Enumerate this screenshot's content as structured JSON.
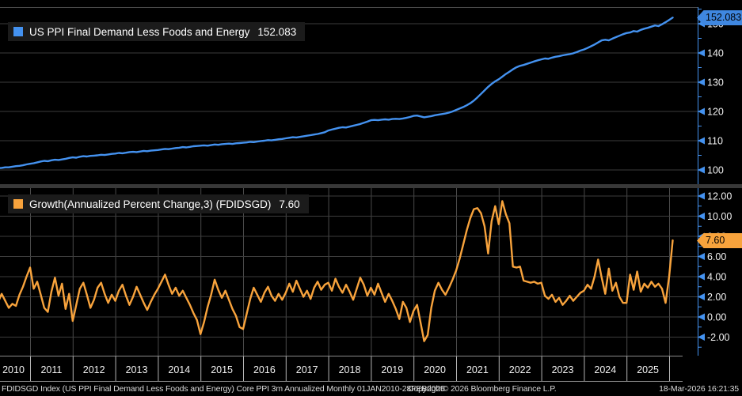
{
  "legends": {
    "top": {
      "label": "US PPI Final Demand Less Foods and Energy",
      "value": "152.083"
    },
    "bottom": {
      "label": "Growth(Annualized Percent Change,3) (FDIDSGD)",
      "value": "7.60"
    }
  },
  "badges": {
    "top": {
      "text": "152.083",
      "v": 152.083
    },
    "bottom": {
      "text": "7.60",
      "v": 7.6
    }
  },
  "footer": {
    "left": "FDIDSGD Index (US PPI Final Demand Less Foods and Energy) Core PPI 3m Annualized Monthly 01JAN2010-28FEB2026",
    "center": "Copyright© 2026 Bloomberg Finance L.P.",
    "right": "18-Mar-2026 16:21:35"
  },
  "colors": {
    "background": "#000000",
    "top_line": "#4492f0",
    "bottom_line": "#f8a33c",
    "axis": "#4492f0",
    "grid_h": "#3d3d3d",
    "grid_v": "#4a4a4a",
    "separator": "#383838",
    "top_border": "#4a4a4a",
    "label_row_line": "#8a8a8a",
    "label_row_divider": "#b5b5b5",
    "tick_text": "#f2f2f2",
    "top_badge_bg": "#3f87e0",
    "bottom_badge_bg": "#f8a33c",
    "badge_text": "#000000",
    "legend_bg": "#1b1b1b",
    "footer_text": "#d8d8d8"
  },
  "x_axis": {
    "year_labels": [
      "2010",
      "2011",
      "2012",
      "2013",
      "2014",
      "2015",
      "2016",
      "2017",
      "2018",
      "2019",
      "2020",
      "2021",
      "2022",
      "2023",
      "2024",
      "2025"
    ]
  },
  "chart_data": [
    {
      "type": "line",
      "name": "US PPI Final Demand Less Foods and Energy",
      "panel": "top",
      "freq": "monthly",
      "start": "2010-01",
      "end": "2026-02",
      "last_value": 152.083,
      "ylim": [
        97,
        154
      ],
      "yticks_labeled": [
        {
          "v": 150,
          "t": "150"
        },
        {
          "v": 140,
          "t": "140"
        },
        {
          "v": 130,
          "t": "130"
        },
        {
          "v": 120,
          "t": "120"
        },
        {
          "v": 110,
          "t": "110"
        },
        {
          "v": 100,
          "t": "100"
        }
      ],
      "yticks_grid": [
        100,
        110,
        120,
        130,
        140,
        150
      ],
      "yticks_minor": [
        155,
        145,
        135,
        125,
        115,
        105
      ],
      "values": [
        100.2,
        100.3,
        100.4,
        100.6,
        100.7,
        100.9,
        100.9,
        101.1,
        101.3,
        101.4,
        101.6,
        101.9,
        102.1,
        102.3,
        102.6,
        102.9,
        103.1,
        103.0,
        103.3,
        103.5,
        103.4,
        103.6,
        103.8,
        104.1,
        104.3,
        104.2,
        104.5,
        104.7,
        104.6,
        104.8,
        104.9,
        105.0,
        105.2,
        105.1,
        105.3,
        105.5,
        105.6,
        105.8,
        105.7,
        105.9,
        106.1,
        106.2,
        106.1,
        106.3,
        106.5,
        106.4,
        106.6,
        106.7,
        106.8,
        107.0,
        107.2,
        107.1,
        107.3,
        107.5,
        107.6,
        107.8,
        107.7,
        107.9,
        108.1,
        108.2,
        108.3,
        108.4,
        108.3,
        108.5,
        108.7,
        108.6,
        108.8,
        108.9,
        109.0,
        108.9,
        109.1,
        109.2,
        109.3,
        109.4,
        109.6,
        109.5,
        109.7,
        109.9,
        110.0,
        110.2,
        110.1,
        110.3,
        110.5,
        110.6,
        110.8,
        111.0,
        111.2,
        111.1,
        111.3,
        111.5,
        111.7,
        111.9,
        112.1,
        112.3,
        112.6,
        112.9,
        113.5,
        113.8,
        114.1,
        114.4,
        114.6,
        114.5,
        114.8,
        115.1,
        115.4,
        115.7,
        116.1,
        116.5,
        117.0,
        117.1,
        117.0,
        117.2,
        117.3,
        117.2,
        117.4,
        117.5,
        117.4,
        117.6,
        117.8,
        118.1,
        118.5,
        118.6,
        118.3,
        118.0,
        118.2,
        118.4,
        118.7,
        118.9,
        119.1,
        119.3,
        119.6,
        120.0,
        120.5,
        121.0,
        121.5,
        122.1,
        122.8,
        123.7,
        124.8,
        126.0,
        127.2,
        128.4,
        129.4,
        130.3,
        131.0,
        131.9,
        132.8,
        133.6,
        134.4,
        135.1,
        135.6,
        135.9,
        136.3,
        136.7,
        137.1,
        137.5,
        137.8,
        138.1,
        138.0,
        138.4,
        138.7,
        138.9,
        139.2,
        139.4,
        139.6,
        139.9,
        140.3,
        140.8,
        141.2,
        141.7,
        142.3,
        142.9,
        143.6,
        144.3,
        144.5,
        144.3,
        144.9,
        145.4,
        145.9,
        146.4,
        146.8,
        147.0,
        147.5,
        147.3,
        147.9,
        148.3,
        148.6,
        149.0,
        149.4,
        149.2,
        149.8,
        150.5,
        151.3,
        152.083
      ]
    },
    {
      "type": "line",
      "name": "Growth(Annualized Percent Change,3) (FDIDSGD)",
      "panel": "bottom",
      "freq": "monthly",
      "start": "2010-01",
      "end": "2026-02",
      "last_value": 7.6,
      "ylim": [
        -3.6,
        12.8
      ],
      "yticks_labeled": [
        {
          "v": 12,
          "t": "12.00"
        },
        {
          "v": 10,
          "t": "10.00"
        },
        {
          "v": 8,
          "t": "8.00"
        },
        {
          "v": 6,
          "t": "6.00"
        },
        {
          "v": 4,
          "t": "4.00"
        },
        {
          "v": 2,
          "t": "2.00"
        },
        {
          "v": 0,
          "t": "0.00"
        },
        {
          "v": -2,
          "t": "-2.00"
        }
      ],
      "yticks_grid": [
        -2,
        0,
        2,
        4,
        6,
        8,
        10,
        12
      ],
      "yticks_minor": [
        -3,
        -1,
        1,
        3,
        5,
        7,
        9,
        11
      ],
      "values": [
        null,
        null,
        2.1,
        1.5,
        2.3,
        1.6,
        0.9,
        1.3,
        1.1,
        2.2,
        3.0,
        4.0,
        4.9,
        2.8,
        3.5,
        2.2,
        0.9,
        0.5,
        2.5,
        3.9,
        2.1,
        3.3,
        0.8,
        2.3,
        -0.4,
        1.2,
        2.8,
        3.4,
        2.2,
        0.9,
        1.7,
        2.9,
        3.4,
        2.3,
        1.4,
        2.2,
        1.6,
        2.6,
        3.2,
        2.1,
        1.2,
        2.0,
        3.0,
        2.2,
        1.4,
        0.7,
        1.5,
        2.2,
        2.8,
        3.5,
        4.2,
        3.2,
        2.3,
        2.9,
        2.1,
        2.6,
        1.9,
        1.2,
        0.4,
        -0.3,
        -1.7,
        -0.5,
        1.0,
        2.2,
        3.7,
        2.7,
        1.9,
        2.6,
        1.7,
        0.8,
        0.1,
        -1.0,
        -1.2,
        0.3,
        1.8,
        2.9,
        2.2,
        1.5,
        2.4,
        3.0,
        2.1,
        1.6,
        2.3,
        1.7,
        2.4,
        3.3,
        2.5,
        3.6,
        2.8,
        2.0,
        2.6,
        1.8,
        2.9,
        3.5,
        2.7,
        3.2,
        3.4,
        2.6,
        3.8,
        3.0,
        2.4,
        3.2,
        2.5,
        1.7,
        2.8,
        3.9,
        3.2,
        2.1,
        2.9,
        2.2,
        3.3,
        2.4,
        1.5,
        2.3,
        1.6,
        0.8,
        -0.2,
        1.5,
        0.9,
        -0.5,
        0.6,
        1.2,
        -0.6,
        -2.4,
        -1.8,
        0.9,
        2.6,
        3.4,
        2.7,
        2.2,
        2.9,
        3.7,
        4.6,
        5.8,
        7.2,
        8.6,
        9.8,
        10.7,
        10.8,
        10.3,
        9.0,
        6.3,
        9.5,
        11.0,
        9.2,
        11.5,
        10.2,
        9.3,
        5.0,
        4.9,
        5.0,
        3.6,
        3.5,
        3.4,
        3.5,
        3.3,
        3.4,
        2.1,
        1.8,
        2.2,
        1.5,
        1.9,
        1.2,
        1.6,
        2.1,
        1.6,
        2.0,
        2.4,
        2.6,
        3.2,
        2.8,
        4.0,
        5.7,
        3.9,
        2.3,
        4.8,
        2.6,
        3.4,
        2.0,
        1.4,
        1.4,
        4.2,
        2.7,
        4.5,
        2.5,
        3.3,
        2.9,
        3.5,
        3.0,
        3.3,
        2.8,
        1.4,
        4.0,
        7.6
      ]
    }
  ]
}
